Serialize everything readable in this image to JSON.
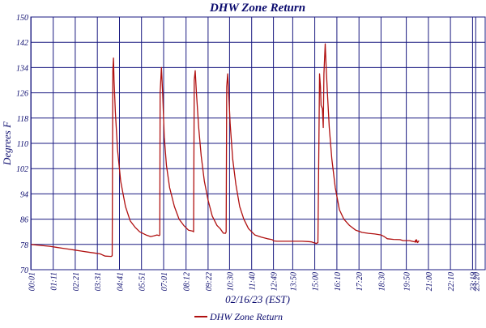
{
  "chart_data": {
    "type": "line",
    "title": "DHW Zone Return",
    "xlabel": "02/16/23 (EST)",
    "ylabel": "Degrees F",
    "ylim": [
      70,
      150
    ],
    "yticks": [
      70,
      78,
      86,
      94,
      102,
      110,
      118,
      126,
      134,
      142,
      150
    ],
    "xlim": [
      0,
      1440
    ],
    "xticks": [
      {
        "minute": 1,
        "label": "00:01"
      },
      {
        "minute": 71,
        "label": "01:11"
      },
      {
        "minute": 141,
        "label": "02:21"
      },
      {
        "minute": 211,
        "label": "03:31"
      },
      {
        "minute": 281,
        "label": "04:41"
      },
      {
        "minute": 351,
        "label": "05:51"
      },
      {
        "minute": 421,
        "label": "07:01"
      },
      {
        "minute": 492,
        "label": "08:12"
      },
      {
        "minute": 562,
        "label": "09:22"
      },
      {
        "minute": 630,
        "label": "10:30"
      },
      {
        "minute": 700,
        "label": "11:40"
      },
      {
        "minute": 769,
        "label": "12:49"
      },
      {
        "minute": 830,
        "label": "13:50"
      },
      {
        "minute": 900,
        "label": "15:00"
      },
      {
        "minute": 970,
        "label": "16:10"
      },
      {
        "minute": 1040,
        "label": "17:20"
      },
      {
        "minute": 1110,
        "label": "18:30"
      },
      {
        "minute": 1190,
        "label": "19:50"
      },
      {
        "minute": 1260,
        "label": "21:00"
      },
      {
        "minute": 1330,
        "label": "22:10"
      },
      {
        "minute": 1400,
        "label": "23:19"
      },
      {
        "minute": 1410,
        "label": "23:20"
      }
    ],
    "grid": true,
    "legend_position": "bottom",
    "series": [
      {
        "name": "DHW Zone Return",
        "color": "#b01010",
        "points": [
          [
            0,
            78.0
          ],
          [
            20,
            77.8
          ],
          [
            40,
            77.6
          ],
          [
            60,
            77.4
          ],
          [
            80,
            77.1
          ],
          [
            100,
            76.8
          ],
          [
            120,
            76.5
          ],
          [
            140,
            76.2
          ],
          [
            160,
            75.9
          ],
          [
            180,
            75.6
          ],
          [
            200,
            75.3
          ],
          [
            220,
            75.0
          ],
          [
            235,
            74.3
          ],
          [
            255,
            74.2
          ],
          [
            258,
            74.4
          ],
          [
            260,
            133
          ],
          [
            262,
            137
          ],
          [
            264,
            130
          ],
          [
            268,
            120
          ],
          [
            275,
            108
          ],
          [
            285,
            98
          ],
          [
            300,
            90
          ],
          [
            315,
            85.5
          ],
          [
            330,
            83.5
          ],
          [
            345,
            82
          ],
          [
            365,
            81
          ],
          [
            380,
            80.5
          ],
          [
            390,
            80.7
          ],
          [
            400,
            81
          ],
          [
            407,
            80.8
          ],
          [
            409,
            81
          ],
          [
            410,
            126
          ],
          [
            414,
            134
          ],
          [
            418,
            126
          ],
          [
            423,
            112
          ],
          [
            430,
            103
          ],
          [
            440,
            96
          ],
          [
            455,
            90
          ],
          [
            470,
            86
          ],
          [
            485,
            84
          ],
          [
            500,
            82.5
          ],
          [
            513,
            82.2
          ],
          [
            516,
            82
          ],
          [
            518,
            130
          ],
          [
            521,
            133
          ],
          [
            525,
            126
          ],
          [
            532,
            115
          ],
          [
            540,
            106
          ],
          [
            550,
            98
          ],
          [
            562,
            92
          ],
          [
            575,
            87
          ],
          [
            590,
            84
          ],
          [
            600,
            83
          ],
          [
            610,
            81.6
          ],
          [
            617,
            81.5
          ],
          [
            619,
            82
          ],
          [
            621,
            128
          ],
          [
            624,
            132
          ],
          [
            627,
            126
          ],
          [
            632,
            116
          ],
          [
            640,
            105
          ],
          [
            650,
            97
          ],
          [
            662,
            90
          ],
          [
            675,
            86
          ],
          [
            690,
            83
          ],
          [
            710,
            81
          ],
          [
            730,
            80.3
          ],
          [
            750,
            79.8
          ],
          [
            765,
            79.5
          ],
          [
            770,
            79.1
          ],
          [
            780,
            79
          ],
          [
            800,
            79
          ],
          [
            820,
            79
          ],
          [
            840,
            79
          ],
          [
            860,
            79
          ],
          [
            880,
            78.9
          ],
          [
            890,
            78.8
          ],
          [
            905,
            78.3
          ],
          [
            910,
            78.6
          ],
          [
            913,
            110
          ],
          [
            915,
            132
          ],
          [
            918,
            128
          ],
          [
            920,
            122
          ],
          [
            924,
            121
          ],
          [
            927,
            115
          ],
          [
            929,
            132
          ],
          [
            933,
            141.5
          ],
          [
            936,
            134
          ],
          [
            940,
            126
          ],
          [
            946,
            115
          ],
          [
            954,
            105
          ],
          [
            965,
            96
          ],
          [
            978,
            89
          ],
          [
            992,
            86
          ],
          [
            1010,
            84
          ],
          [
            1030,
            82.5
          ],
          [
            1050,
            81.8
          ],
          [
            1070,
            81.5
          ],
          [
            1090,
            81.3
          ],
          [
            1110,
            81.0
          ],
          [
            1120,
            80.5
          ],
          [
            1130,
            79.8
          ],
          [
            1150,
            79.6
          ],
          [
            1170,
            79.5
          ],
          [
            1180,
            79.2
          ],
          [
            1200,
            79.2
          ],
          [
            1218,
            78.8
          ],
          [
            1219,
            79.3
          ],
          [
            1221,
            78.7
          ],
          [
            1222,
            79.5
          ],
          [
            1226,
            78.6
          ],
          [
            1230,
            79.2
          ]
        ]
      }
    ]
  }
}
